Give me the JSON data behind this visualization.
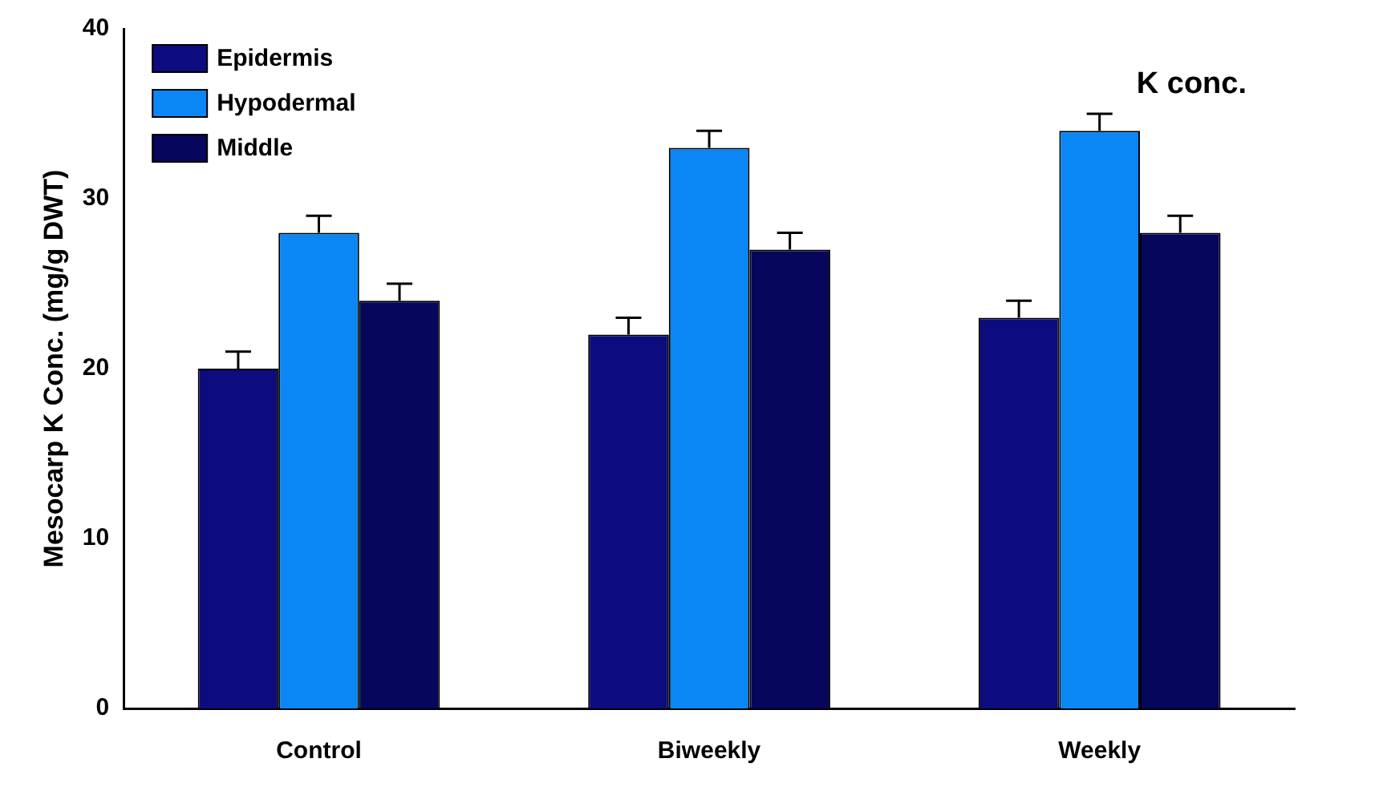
{
  "chart_data": {
    "type": "bar",
    "ylabel": "Mesocarp K Conc. (mg/g DWT)",
    "annotations": [
      "K conc."
    ],
    "categories": [
      "Control",
      "Biweekly",
      "Weekly"
    ],
    "series": [
      {
        "name": "Epidermis",
        "color": "#0c0c7e",
        "values": [
          20,
          22,
          23
        ],
        "errors": [
          1,
          1,
          1
        ]
      },
      {
        "name": "Hypodermal",
        "color": "#0a86f5",
        "values": [
          28,
          33,
          34
        ],
        "errors": [
          1,
          1,
          1
        ]
      },
      {
        "name": "Middle",
        "color": "#06065c",
        "values": [
          24,
          27,
          28
        ],
        "errors": [
          1,
          1,
          1
        ]
      }
    ],
    "ylim": [
      0,
      40
    ],
    "yticks": [
      0,
      10,
      20,
      30,
      40
    ],
    "grid": false,
    "legend": "top left"
  }
}
